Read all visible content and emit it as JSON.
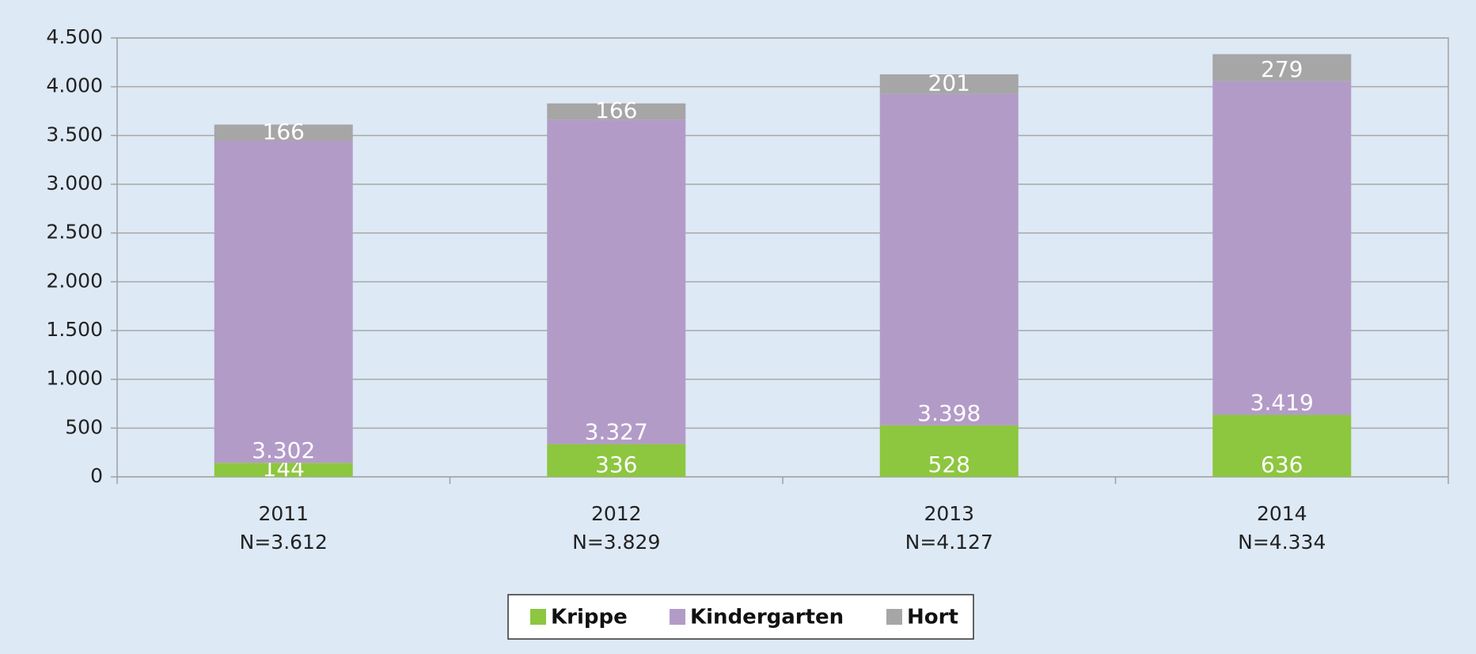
{
  "chart_data": {
    "type": "stacked_bar",
    "categories": [
      "2011",
      "2012",
      "2013",
      "2014"
    ],
    "category_sublabels": [
      "N=3.612",
      "N=3.829",
      "N=4.127",
      "N=4.334"
    ],
    "series": [
      {
        "name": "Krippe",
        "color": "#8dc63f",
        "values": [
          144,
          336,
          528,
          636
        ]
      },
      {
        "name": "Kindergarten",
        "color": "#b39bc8",
        "values": [
          3302,
          3327,
          3398,
          3419
        ],
        "value_labels": [
          "3.302",
          "3.327",
          "3.398",
          "3.419"
        ]
      },
      {
        "name": "Hort",
        "color": "#a6a6a6",
        "values": [
          166,
          166,
          201,
          279
        ]
      }
    ],
    "ylim": [
      0,
      4500
    ],
    "yticks": [
      0,
      500,
      {
        "value": 1000,
        "label": "1.000"
      },
      {
        "value": 1500,
        "label": "1.500"
      },
      {
        "value": 2000,
        "label": "2.000"
      },
      {
        "value": 2500,
        "label": "2.500"
      },
      {
        "value": 3000,
        "label": "3.000"
      },
      {
        "value": 3500,
        "label": "3.500"
      },
      {
        "value": 4000,
        "label": "4.000"
      },
      {
        "value": 4500,
        "label": "4.500"
      }
    ],
    "grid": true,
    "legend": "bottom"
  }
}
